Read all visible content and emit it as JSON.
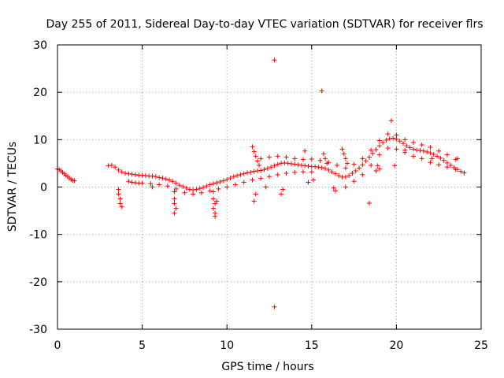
{
  "chart_data": {
    "type": "scatter",
    "title": "Day 255 of 2011, Sidereal Day-to-day VTEC variation (SDTVAR) for receiver flrs",
    "xlabel": "GPS time / hours",
    "ylabel": "SDTVAR / TECUs",
    "xlim": [
      0,
      25
    ],
    "ylim": [
      -30,
      30
    ],
    "xticks": [
      "0",
      "5",
      "10",
      "15",
      "20",
      "25"
    ],
    "yticks": [
      "30",
      "20",
      "10",
      "0",
      "-10",
      "-20",
      "-30"
    ],
    "grid": true,
    "marker": "+",
    "color": "#ff0000",
    "series": [
      {
        "points": [
          [
            0.0,
            3.8
          ],
          [
            0.1,
            3.7
          ],
          [
            0.2,
            3.4
          ],
          [
            0.3,
            3.1
          ],
          [
            0.4,
            2.8
          ],
          [
            0.5,
            2.5
          ],
          [
            0.6,
            2.2
          ],
          [
            0.7,
            1.9
          ],
          [
            0.8,
            1.6
          ],
          [
            0.9,
            1.4
          ],
          [
            1.0,
            1.3
          ],
          [
            3.0,
            4.5
          ],
          [
            3.2,
            4.6
          ],
          [
            3.4,
            4.2
          ],
          [
            3.6,
            3.6
          ],
          [
            3.8,
            3.2
          ],
          [
            4.0,
            2.9
          ],
          [
            4.2,
            2.8
          ],
          [
            4.4,
            2.7
          ],
          [
            4.6,
            2.6
          ],
          [
            4.8,
            2.5
          ],
          [
            5.0,
            2.5
          ],
          [
            5.2,
            2.4
          ],
          [
            5.4,
            2.3
          ],
          [
            5.6,
            2.3
          ],
          [
            5.8,
            2.2
          ],
          [
            6.0,
            2.0
          ],
          [
            6.2,
            1.9
          ],
          [
            6.4,
            1.7
          ],
          [
            6.6,
            1.5
          ],
          [
            6.8,
            1.2
          ],
          [
            7.0,
            0.8
          ],
          [
            7.2,
            0.4
          ],
          [
            7.4,
            0.1
          ],
          [
            7.6,
            -0.2
          ],
          [
            7.8,
            -0.5
          ],
          [
            8.0,
            -0.6
          ],
          [
            8.2,
            -0.5
          ],
          [
            8.4,
            -0.3
          ],
          [
            8.6,
            -0.1
          ],
          [
            8.8,
            0.2
          ],
          [
            9.0,
            0.5
          ],
          [
            9.2,
            0.7
          ],
          [
            9.4,
            0.9
          ],
          [
            9.6,
            1.1
          ],
          [
            9.8,
            1.3
          ],
          [
            10.0,
            1.6
          ],
          [
            10.2,
            1.9
          ],
          [
            10.4,
            2.2
          ],
          [
            10.6,
            2.4
          ],
          [
            10.8,
            2.6
          ],
          [
            11.0,
            2.8
          ],
          [
            11.2,
            3.0
          ],
          [
            11.4,
            3.1
          ],
          [
            11.6,
            3.3
          ],
          [
            11.8,
            3.4
          ],
          [
            12.0,
            3.5
          ],
          [
            12.2,
            3.7
          ],
          [
            12.4,
            3.9
          ],
          [
            12.6,
            4.2
          ],
          [
            12.8,
            4.5
          ],
          [
            13.0,
            4.8
          ],
          [
            13.2,
            5.0
          ],
          [
            13.4,
            5.1
          ],
          [
            13.6,
            5.0
          ],
          [
            13.8,
            4.9
          ],
          [
            14.0,
            4.8
          ],
          [
            14.2,
            4.7
          ],
          [
            14.4,
            4.6
          ],
          [
            14.6,
            4.5
          ],
          [
            14.8,
            4.4
          ],
          [
            15.0,
            4.3
          ],
          [
            15.2,
            4.3
          ],
          [
            15.4,
            4.2
          ],
          [
            15.6,
            4.1
          ],
          [
            15.8,
            3.9
          ],
          [
            16.0,
            3.6
          ],
          [
            16.2,
            3.2
          ],
          [
            16.4,
            2.8
          ],
          [
            16.6,
            2.4
          ],
          [
            16.8,
            2.1
          ],
          [
            17.0,
            2.1
          ],
          [
            17.2,
            2.4
          ],
          [
            17.4,
            2.9
          ],
          [
            17.6,
            3.4
          ],
          [
            17.8,
            4.0
          ],
          [
            18.0,
            4.7
          ],
          [
            18.2,
            5.5
          ],
          [
            18.4,
            6.3
          ],
          [
            18.6,
            7.1
          ],
          [
            18.8,
            7.9
          ],
          [
            19.0,
            8.7
          ],
          [
            19.2,
            9.4
          ],
          [
            19.4,
            9.9
          ],
          [
            19.6,
            10.2
          ],
          [
            19.8,
            10.3
          ],
          [
            20.0,
            10.1
          ],
          [
            20.2,
            9.7
          ],
          [
            20.4,
            9.2
          ],
          [
            20.6,
            8.7
          ],
          [
            20.8,
            8.3
          ],
          [
            21.0,
            8.0
          ],
          [
            21.2,
            7.8
          ],
          [
            21.4,
            7.7
          ],
          [
            21.6,
            7.6
          ],
          [
            21.8,
            7.4
          ],
          [
            22.0,
            7.2
          ],
          [
            22.2,
            6.9
          ],
          [
            22.4,
            6.5
          ],
          [
            22.6,
            6.1
          ],
          [
            22.8,
            5.6
          ],
          [
            23.0,
            5.1
          ],
          [
            23.2,
            4.6
          ],
          [
            23.4,
            4.1
          ],
          [
            23.6,
            3.7
          ],
          [
            23.8,
            3.3
          ],
          [
            24.0,
            3.0
          ],
          [
            4.2,
            1.2
          ],
          [
            4.4,
            1.0
          ],
          [
            4.6,
            0.9
          ],
          [
            4.8,
            0.8
          ],
          [
            5.0,
            0.8
          ],
          [
            5.5,
            0.7
          ],
          [
            6.0,
            0.5
          ],
          [
            6.5,
            0.2
          ],
          [
            7.0,
            -0.4
          ],
          [
            7.5,
            -1.2
          ],
          [
            8.0,
            -1.5
          ],
          [
            8.5,
            -1.2
          ],
          [
            9.0,
            -0.8
          ],
          [
            9.5,
            -0.4
          ],
          [
            10.0,
            0.0
          ],
          [
            10.5,
            0.5
          ],
          [
            11.0,
            1.0
          ],
          [
            11.5,
            1.5
          ],
          [
            12.0,
            1.8
          ],
          [
            12.5,
            2.2
          ],
          [
            13.0,
            2.6
          ],
          [
            13.5,
            2.9
          ],
          [
            14.0,
            3.1
          ],
          [
            14.5,
            3.2
          ],
          [
            15.0,
            3.2
          ],
          [
            12.0,
            6.0
          ],
          [
            12.5,
            6.3
          ],
          [
            13.0,
            6.5
          ],
          [
            13.5,
            6.3
          ],
          [
            14.0,
            6.0
          ],
          [
            14.5,
            5.8
          ],
          [
            15.0,
            5.9
          ],
          [
            15.5,
            5.6
          ],
          [
            16.0,
            5.2
          ],
          [
            16.5,
            4.6
          ],
          [
            17.0,
            4.0
          ],
          [
            17.5,
            4.8
          ],
          [
            18.0,
            6.0
          ],
          [
            18.5,
            7.8
          ],
          [
            19.0,
            9.8
          ],
          [
            19.5,
            11.2
          ],
          [
            20.0,
            11.0
          ],
          [
            20.5,
            10.0
          ],
          [
            21.0,
            9.4
          ],
          [
            21.5,
            8.9
          ],
          [
            22.0,
            8.4
          ],
          [
            22.5,
            7.6
          ],
          [
            23.0,
            6.8
          ],
          [
            23.5,
            5.8
          ],
          [
            17.0,
            0.0
          ],
          [
            17.5,
            1.2
          ],
          [
            18.0,
            2.6
          ],
          [
            18.5,
            4.6
          ],
          [
            19.0,
            6.8
          ],
          [
            19.5,
            8.2
          ],
          [
            20.0,
            8.0
          ],
          [
            20.5,
            7.3
          ],
          [
            21.0,
            6.5
          ],
          [
            21.5,
            6.0
          ],
          [
            22.0,
            5.2
          ],
          [
            22.5,
            4.7
          ],
          [
            23.0,
            4.2
          ],
          [
            23.5,
            3.7
          ],
          [
            11.5,
            8.5
          ],
          [
            11.6,
            7.5
          ],
          [
            11.7,
            6.5
          ],
          [
            11.8,
            5.5
          ],
          [
            11.9,
            4.6
          ],
          [
            15.7,
            7.0
          ],
          [
            15.8,
            6.0
          ],
          [
            15.9,
            5.0
          ],
          [
            16.8,
            8.0
          ],
          [
            16.9,
            7.0
          ],
          [
            17.0,
            6.0
          ],
          [
            17.1,
            5.0
          ],
          [
            18.9,
            4.5
          ],
          [
            19.0,
            3.8
          ],
          [
            3.6,
            -0.5
          ],
          [
            3.6,
            -1.5
          ],
          [
            3.7,
            -2.5
          ],
          [
            3.7,
            -3.5
          ],
          [
            3.8,
            -4.2
          ],
          [
            5.6,
            0.0
          ],
          [
            6.9,
            -1.0
          ],
          [
            6.9,
            -2.5
          ],
          [
            6.9,
            -3.5
          ],
          [
            7.0,
            -4.5
          ],
          [
            6.9,
            -5.5
          ],
          [
            9.2,
            -1.0
          ],
          [
            9.2,
            -2.5
          ],
          [
            9.3,
            -3.5
          ],
          [
            9.2,
            -4.5
          ],
          [
            9.3,
            -5.5
          ],
          [
            9.3,
            -6.2
          ],
          [
            9.4,
            -3.0
          ],
          [
            11.7,
            -1.5
          ],
          [
            11.6,
            -3.0
          ],
          [
            12.3,
            0.0
          ],
          [
            13.2,
            -1.5
          ],
          [
            13.3,
            -0.5
          ],
          [
            14.8,
            1.0
          ],
          [
            15.1,
            1.5
          ],
          [
            16.4,
            -0.8
          ],
          [
            16.3,
            -0.2
          ],
          [
            12.8,
            26.8
          ],
          [
            15.6,
            20.3
          ],
          [
            12.8,
            -25.3
          ],
          [
            19.7,
            14.0
          ],
          [
            18.4,
            -3.4
          ],
          [
            14.6,
            7.6
          ],
          [
            19.9,
            4.5
          ],
          [
            20.5,
            7.8
          ],
          [
            23.6,
            6.0
          ],
          [
            18.8,
            3.4
          ],
          [
            22.1,
            6.0
          ]
        ]
      }
    ]
  }
}
